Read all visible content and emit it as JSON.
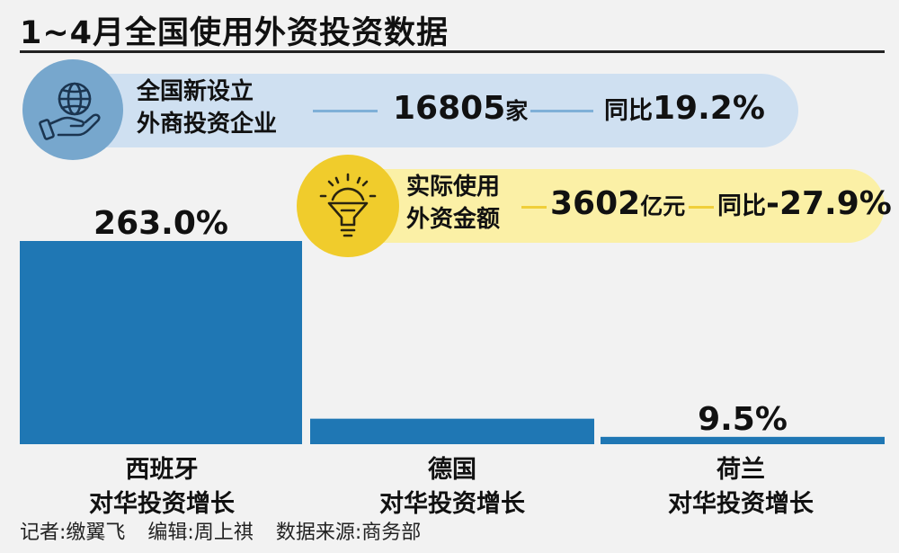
{
  "title": "1~4月全国使用外资投资数据",
  "info1": {
    "label_line1": "全国新设立",
    "label_line2": "外商投资企业",
    "value": "16805",
    "unit": "家",
    "yoy_label": "同比",
    "yoy_value": "19.2%",
    "icon": "globe-hand-icon"
  },
  "info2": {
    "label_line1": "实际使用",
    "label_line2": "外资金额",
    "value": "3602",
    "unit": "亿元",
    "yoy_label": "同比",
    "yoy_value": "-27.9%",
    "icon": "lightbulb-gear-icon"
  },
  "chart_data": {
    "type": "bar",
    "categories": [
      "西班牙",
      "德国",
      "荷兰"
    ],
    "category_sub": "对华投资增长",
    "values": [
      263.0,
      33.0,
      9.5
    ],
    "data_labels": [
      "263.0%",
      "",
      "9.5%"
    ],
    "ylim": [
      0,
      263.0
    ],
    "bar_color": "#1f77b4"
  },
  "footer": {
    "reporter": "记者:缴翼飞",
    "editor": "编辑:周上祺",
    "source": "数据来源:商务部"
  }
}
